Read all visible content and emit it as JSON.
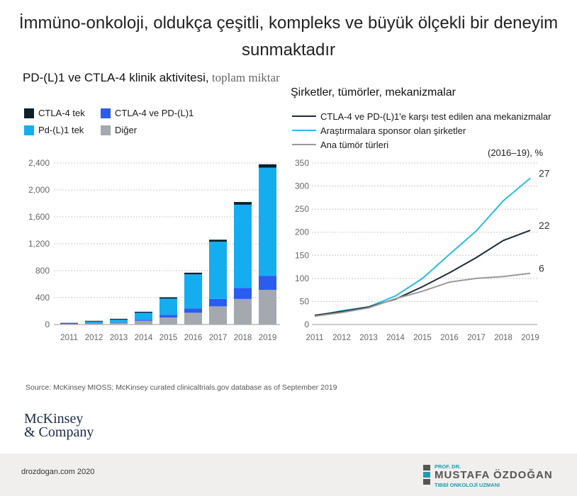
{
  "title": "İmmüno-onkoloji, oldukça çeşitli, kompleks ve büyük ölçekli bir deneyim sunmaktadır",
  "left_title_main": "PD-(L)1 ve CTLA-4 klinik aktivitesi,",
  "left_title_light": " toplam miktar",
  "right_title": "Şirketler, tümörler, mekanizmalar",
  "right_unit": "(2016–19), %",
  "source": "Source: McKinsey MIOSS; McKinsey curated clinicaltrials.gov database as of September 2019",
  "logo_line1": "McKinsey",
  "logo_line2": "& Company",
  "footer_site": "drozdogan.com 2020",
  "brand_line1": "PROF. DR.",
  "brand_line2": "MUSTAFA ÖZDOĞAN",
  "brand_line3": "TIBBİ ONKOLOJİ UZMANI",
  "colors": {
    "ctla4": "#0b1f2e",
    "combo": "#2a5cf0",
    "pdl1": "#14aef0",
    "other": "#a3a9ae",
    "line_mech": "#1c2b3c",
    "line_sponsor": "#2bbde8",
    "line_tumor": "#9a9a9a"
  },
  "chart_data": [
    {
      "type": "bar",
      "stacked": true,
      "categories": [
        "2011",
        "2012",
        "2013",
        "2014",
        "2015",
        "2016",
        "2017",
        "2018",
        "2019"
      ],
      "series": [
        {
          "name": "Diğer",
          "color_key": "other",
          "values": [
            8,
            15,
            25,
            55,
            105,
            175,
            270,
            380,
            515
          ]
        },
        {
          "name": "CTLA-4 ve PD-(L)1",
          "color_key": "combo",
          "values": [
            2,
            5,
            8,
            15,
            40,
            65,
            110,
            165,
            210
          ]
        },
        {
          "name": "Pd-(L)1 tek",
          "color_key": "pdl1",
          "values": [
            6,
            25,
            40,
            105,
            240,
            505,
            850,
            1235,
            1605
          ]
        },
        {
          "name": "CTLA-4 tek",
          "color_key": "ctla4",
          "values": [
            8,
            10,
            12,
            15,
            20,
            25,
            30,
            40,
            50
          ]
        }
      ],
      "legend_order": [
        "CTLA-4 tek",
        "CTLA-4 ve PD-(L)1",
        "Pd-(L)1 tek",
        "Diğer"
      ],
      "legend_keys": [
        "ctla4",
        "combo",
        "pdl1",
        "other"
      ],
      "ylim": [
        0,
        2400
      ],
      "yticks": [
        "0",
        "400",
        "800",
        "1,200",
        "1,600",
        "2,000",
        "2,400"
      ],
      "ytick_values": [
        0,
        400,
        800,
        1200,
        1600,
        2000,
        2400
      ],
      "grid": "horizontal dashed"
    },
    {
      "type": "line",
      "x": [
        "2011",
        "2012",
        "2013",
        "2014",
        "2015",
        "2016",
        "2017",
        "2018",
        "2019"
      ],
      "series": [
        {
          "name": "CTLA-4 ve PD-(L)1'e karşı test edilen ana mekanizmalar",
          "color_key": "line_mech",
          "values": [
            20,
            28,
            38,
            55,
            82,
            112,
            145,
            182,
            204
          ],
          "end_label": "22"
        },
        {
          "name": "Araştırmalara sponsor olan şirketler",
          "color_key": "line_sponsor",
          "values": [
            18,
            30,
            38,
            62,
            100,
            152,
            203,
            268,
            317
          ],
          "end_label": "27"
        },
        {
          "name": "Ana tümör türleri",
          "color_key": "line_tumor",
          "values": [
            18,
            26,
            36,
            56,
            72,
            92,
            100,
            104,
            111
          ],
          "end_label": "6"
        }
      ],
      "ylim": [
        0,
        350
      ],
      "yticks": [
        "0",
        "50",
        "100",
        "150",
        "200",
        "250",
        "300",
        "350"
      ],
      "ytick_values": [
        0,
        50,
        100,
        150,
        200,
        250,
        300,
        350
      ],
      "grid": "horizontal dashed"
    }
  ]
}
